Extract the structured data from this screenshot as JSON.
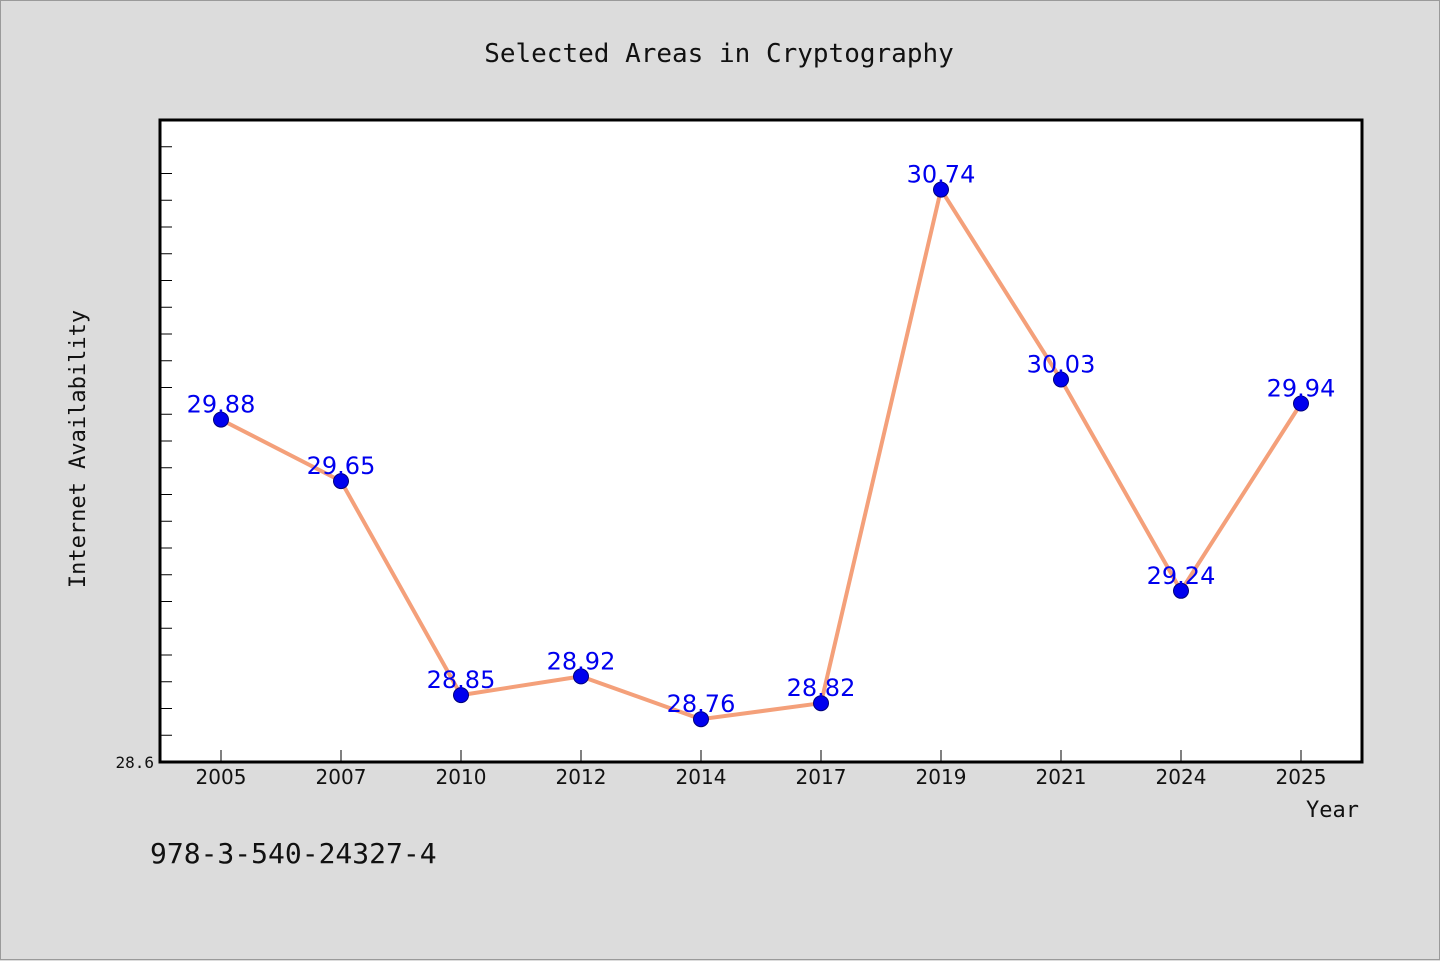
{
  "chart_data": {
    "type": "line",
    "title": "Selected Areas in Cryptography",
    "xlabel": "Year",
    "ylabel": "Internet Availability",
    "categories": [
      "2005",
      "2007",
      "2010",
      "2012",
      "2014",
      "2017",
      "2019",
      "2021",
      "2024",
      "2025"
    ],
    "series": [
      {
        "values": [
          29.88,
          29.65,
          28.85,
          28.92,
          28.76,
          28.82,
          30.74,
          30.03,
          29.24,
          29.94
        ]
      }
    ],
    "data_labels": [
      "29.88",
      "29.65",
      "28.85",
      "28.92",
      "28.76",
      "28.82",
      "30.74",
      "30.03",
      "29.24",
      "29.94"
    ],
    "ylim": [
      28.6,
      31.0
    ],
    "yticks_labeled": [
      "28.6"
    ],
    "ymajor_step": 0.1,
    "grid": false,
    "legend": "none",
    "colors": {
      "line": "#f4a07a",
      "marker": "#0000ee",
      "label": "#0000ee",
      "plot_bg": "#ffffff",
      "frame": "#000000",
      "figure_bg": "#dcdcdc"
    }
  },
  "footer": {
    "isbn": "978-3-540-24327-4"
  }
}
